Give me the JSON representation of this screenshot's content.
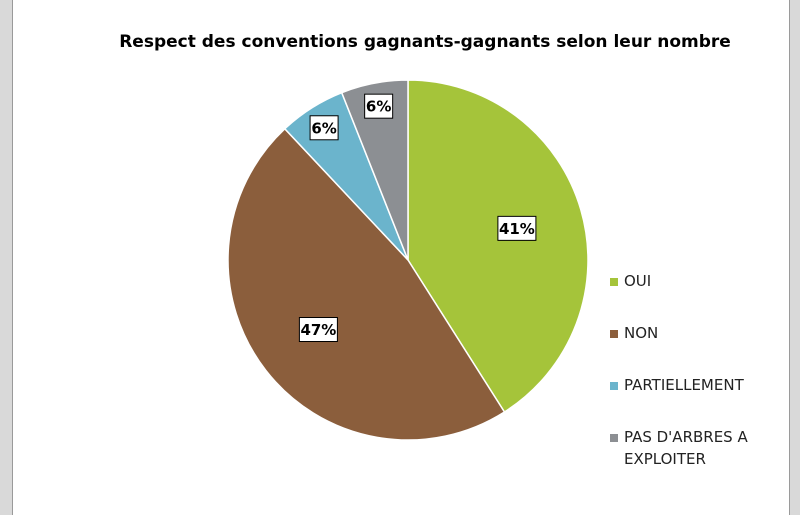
{
  "chart_data": {
    "type": "pie",
    "title": "Respect des conventions gagnants-gagnants selon leur nombre",
    "categories": [
      "OUI",
      "NON",
      "PARTIELLEMENT",
      "PAS D'ARBRES A EXPLOITER"
    ],
    "values": [
      41,
      47,
      6,
      6
    ],
    "value_labels": [
      "41%",
      "47%",
      "6%",
      "6%"
    ],
    "colors": [
      "#a5c43a",
      "#8b5e3c",
      "#6bb4cc",
      "#8c8f93"
    ],
    "legend": "right"
  }
}
